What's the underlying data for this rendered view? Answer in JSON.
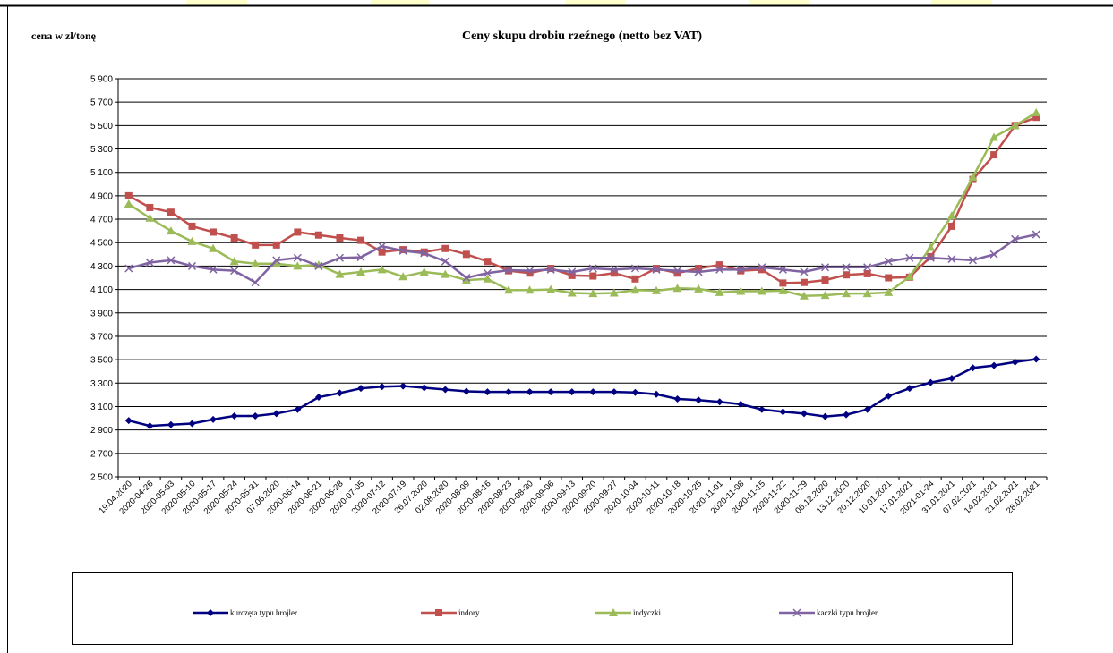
{
  "chart_data": {
    "type": "line",
    "title": "Ceny skupu drobiu rzeźnego (netto bez VAT)",
    "y_label": "cena w zł/tonę",
    "categories": [
      "19.04.2020",
      "2020-04-26",
      "2020-05-03",
      "2020-05-10",
      "2020-05-17",
      "2020-05-24",
      "2020-05-31",
      "07.06.2020",
      "2020-06-14",
      "2020-06-21",
      "2020-06-28",
      "2020-07-05",
      "2020-07-12",
      "2020-07-19",
      "26.07.2020",
      "02.08.2020",
      "2020-08-09",
      "2020-08-16",
      "2020-08-23",
      "2020-08-30",
      "2020-09-06",
      "2020-09-13",
      "2020-09-20",
      "2020-09-27",
      "2020-10-04",
      "2020-10-11",
      "2020-10-18",
      "2020-10-25",
      "2020-11-01",
      "2020-11-08",
      "2020-11-15",
      "2020-11-22",
      "2020-11-29",
      "06.12.2020",
      "13.12.2020",
      "20.12.2020",
      "10.01.2021",
      "17.01.2021",
      "2021-01-24",
      "31.01.2021",
      "07.02.2021",
      "14.02.2021",
      "21.02.2021",
      "28.02.2021"
    ],
    "series": [
      {
        "name": "kurczęta typu brojler",
        "color": "#000080",
        "marker": "diamond",
        "values": [
          2980,
          2935,
          2945,
          2955,
          2990,
          3020,
          3020,
          3040,
          3075,
          3180,
          3215,
          3255,
          3270,
          3275,
          3260,
          3245,
          3230,
          3225,
          3225,
          3225,
          3225,
          3225,
          3225,
          3225,
          3220,
          3205,
          3165,
          3155,
          3140,
          3120,
          3075,
          3055,
          3040,
          3015,
          3030,
          3075,
          3190,
          3255,
          3305,
          3340,
          3430,
          3450,
          3480,
          3505
        ]
      },
      {
        "name": "indory",
        "color": "#c0504d",
        "marker": "square",
        "values": [
          4900,
          4800,
          4760,
          4640,
          4590,
          4540,
          4480,
          4480,
          4590,
          4565,
          4540,
          4520,
          4420,
          4440,
          4420,
          4450,
          4400,
          4340,
          4260,
          4240,
          4280,
          4220,
          4215,
          4240,
          4190,
          4280,
          4240,
          4280,
          4310,
          4260,
          4270,
          4155,
          4160,
          4180,
          4225,
          4235,
          4200,
          4205,
          4380,
          4640,
          5040,
          5250,
          5500,
          5570
        ]
      },
      {
        "name": "indyczki",
        "color": "#9bbb59",
        "marker": "triangle",
        "values": [
          4830,
          4710,
          4600,
          4510,
          4450,
          4340,
          4320,
          4320,
          4300,
          4310,
          4230,
          4250,
          4270,
          4210,
          4250,
          4230,
          4180,
          4190,
          4095,
          4095,
          4100,
          4070,
          4065,
          4070,
          4095,
          4090,
          4110,
          4105,
          4075,
          4085,
          4085,
          4090,
          4045,
          4050,
          4065,
          4065,
          4075,
          4210,
          4460,
          4730,
          5060,
          5400,
          5500,
          5610
        ]
      },
      {
        "name": "kaczki typu brojler",
        "color": "#8064a2",
        "marker": "x",
        "values": [
          4280,
          4330,
          4350,
          4300,
          4270,
          4260,
          4160,
          4350,
          4370,
          4300,
          4370,
          4375,
          4470,
          4430,
          4410,
          4340,
          4200,
          4240,
          4265,
          4260,
          4270,
          4250,
          4280,
          4270,
          4280,
          4270,
          4260,
          4250,
          4270,
          4270,
          4290,
          4270,
          4250,
          4290,
          4290,
          4290,
          4340,
          4370,
          4370,
          4360,
          4350,
          4400,
          4530,
          4570
        ]
      }
    ],
    "ylim": [
      2500,
      5900
    ],
    "yticks": [
      {
        "value": 2500,
        "label": "2 500"
      },
      {
        "value": 2700,
        "label": "2 700"
      },
      {
        "value": 2900,
        "label": "2 900"
      },
      {
        "value": 3100,
        "label": "3 100"
      },
      {
        "value": 3300,
        "label": "3 300"
      },
      {
        "value": 3500,
        "label": "3 500"
      },
      {
        "value": 3700,
        "label": "3 700"
      },
      {
        "value": 3900,
        "label": "3 900"
      },
      {
        "value": 4100,
        "label": "4 100"
      },
      {
        "value": 4300,
        "label": "4 300"
      },
      {
        "value": 4500,
        "label": "4 500"
      },
      {
        "value": 4700,
        "label": "4 700"
      },
      {
        "value": 4900,
        "label": "4 900"
      },
      {
        "value": 5100,
        "label": "5 100"
      },
      {
        "value": 5300,
        "label": "5 300"
      },
      {
        "value": 5500,
        "label": "5 500"
      },
      {
        "value": 5700,
        "label": "5 700"
      },
      {
        "value": 5900,
        "label": "5 900"
      }
    ],
    "grid": true,
    "legend": "bottom"
  }
}
